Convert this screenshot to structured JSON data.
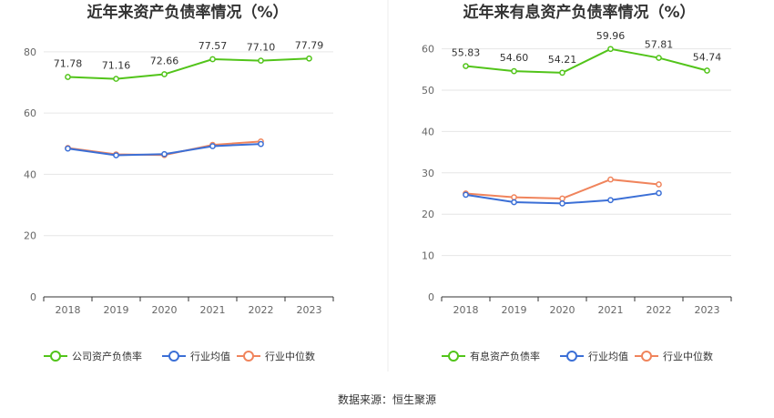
{
  "source_note": "数据来源：恒生聚源",
  "chart_data": [
    {
      "type": "line",
      "title": "近年来资产负债率情况（%）",
      "xlabel": "",
      "ylabel": "",
      "categories": [
        "2018",
        "2019",
        "2020",
        "2021",
        "2022",
        "2023"
      ],
      "ylim": [
        0,
        85
      ],
      "yticks": [
        0,
        20,
        40,
        60,
        80
      ],
      "grid": true,
      "legend_position": "bottom",
      "series": [
        {
          "name": "公司资产负债率",
          "color": "#52c41a",
          "values": [
            71.78,
            71.16,
            72.66,
            77.57,
            77.1,
            77.79
          ],
          "labels": [
            "71.78",
            "71.16",
            "72.66",
            "77.57",
            "77.10",
            "77.79"
          ]
        },
        {
          "name": "行业均值",
          "color": "#3b6fd6",
          "values": [
            48.4,
            46.2,
            46.6,
            49.2,
            49.9,
            null
          ],
          "labels": []
        },
        {
          "name": "行业中位数",
          "color": "#f0845c",
          "values": [
            48.6,
            46.5,
            46.3,
            49.6,
            50.7,
            null
          ],
          "labels": []
        }
      ]
    },
    {
      "type": "line",
      "title": "近年来有息资产负债率情况（%）",
      "xlabel": "",
      "ylabel": "",
      "categories": [
        "2018",
        "2019",
        "2020",
        "2021",
        "2022",
        "2023"
      ],
      "ylim": [
        0,
        63
      ],
      "yticks": [
        0,
        10,
        20,
        30,
        40,
        50,
        60
      ],
      "grid": true,
      "legend_position": "bottom",
      "series": [
        {
          "name": "有息资产负债率",
          "color": "#52c41a",
          "values": [
            55.83,
            54.6,
            54.21,
            59.96,
            57.81,
            54.74
          ],
          "labels": [
            "55.83",
            "54.60",
            "54.21",
            "59.96",
            "57.81",
            "54.74"
          ]
        },
        {
          "name": "行业均值",
          "color": "#3b6fd6",
          "values": [
            24.7,
            22.9,
            22.6,
            23.4,
            25.1,
            null
          ],
          "labels": []
        },
        {
          "name": "行业中位数",
          "color": "#f0845c",
          "values": [
            25.0,
            24.1,
            23.8,
            28.4,
            27.2,
            null
          ],
          "labels": []
        }
      ]
    }
  ]
}
